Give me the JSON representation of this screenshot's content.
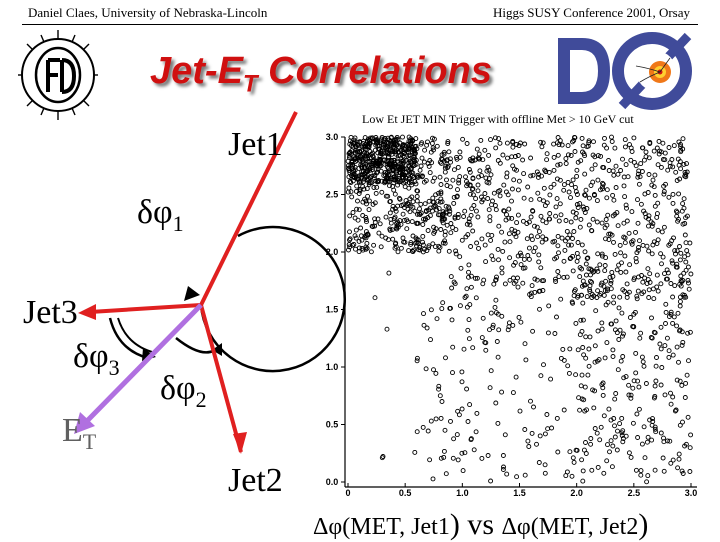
{
  "header": {
    "left": "Daniel Claes, University of Nebraska-Lincoln",
    "right": "Higgs SUSY Conference 2001, Orsay"
  },
  "title": {
    "main": "Jet-E",
    "sub": "T",
    "tail": " Correlations"
  },
  "diagram": {
    "jet1_label": "Jet1",
    "jet2_label": "Jet2",
    "jet3_label": "Jet3",
    "met_label": "E",
    "met_sub": "T",
    "dphi1": {
      "symbol": "δφ",
      "sub": "1"
    },
    "dphi2": {
      "symbol": "δφ",
      "sub": "2"
    },
    "dphi3": {
      "symbol": "δφ",
      "sub": "3"
    },
    "colors": {
      "jets": "#e02020",
      "met": "#b070e0",
      "arcs": "#000000"
    }
  },
  "chart_data": {
    "type": "scatter",
    "title": "Low Et JET MIN Trigger with offline Met > 10 GeV cut",
    "xlabel": "Δφ(MET, Jet1) vs Δφ(MET, Jet2)",
    "caption_parts": {
      "d1": "Δφ",
      "a1": "(MET, Jet1",
      "vs": ") vs ",
      "d2": "Δφ",
      "a2": "(MET, Jet2",
      "end": ")"
    },
    "xlim": [
      0,
      3.0
    ],
    "ylim": [
      0,
      3.0
    ],
    "xticks": [
      "0",
      "0.5",
      "1.0",
      "1.5",
      "2.0",
      "2.5",
      "3.0"
    ],
    "yticks": [
      "0.0",
      "0.5",
      "1.0",
      "1.5",
      "2.0",
      "2.5",
      "3.0"
    ],
    "marker": "open-circle",
    "marker_color": "#000000",
    "regions": [
      {
        "x": [
          0.0,
          0.6
        ],
        "y": [
          2.6,
          3.0
        ],
        "count": 380
      },
      {
        "x": [
          0.0,
          0.9
        ],
        "y": [
          2.0,
          3.0
        ],
        "count": 420
      },
      {
        "x": [
          0.9,
          3.0
        ],
        "y": [
          1.6,
          3.0
        ],
        "count": 700
      },
      {
        "x": [
          0.6,
          3.0
        ],
        "y": [
          0.0,
          1.6
        ],
        "count": 240
      },
      {
        "x": [
          2.0,
          3.0
        ],
        "y": [
          0.0,
          2.0
        ],
        "count": 180
      },
      {
        "x": [
          0.0,
          0.6
        ],
        "y": [
          0.0,
          2.0
        ],
        "count": 6
      }
    ],
    "grid": false
  }
}
